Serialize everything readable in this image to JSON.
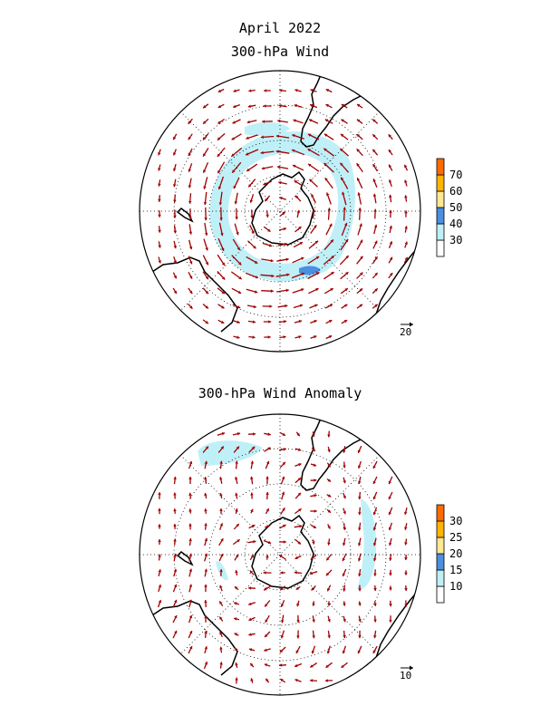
{
  "figure": {
    "title_month": "April 2022",
    "panels": [
      {
        "id": "top",
        "title": "300-hPa Wind",
        "reference_vector_label": "20",
        "colorbar": {
          "labels": [
            "30",
            "40",
            "50",
            "60",
            "70"
          ],
          "colors": [
            "#ffffff",
            "#bff0f8",
            "#4a8fe0",
            "#ffe890",
            "#ffb400",
            "#ff6a00"
          ]
        }
      },
      {
        "id": "bottom",
        "title": "300-hPa Wind Anomaly",
        "reference_vector_label": "10",
        "colorbar": {
          "labels": [
            "10",
            "15",
            "20",
            "25",
            "30"
          ],
          "colors": [
            "#ffffff",
            "#bff0f8",
            "#4a8fe0",
            "#ffe890",
            "#ffb400",
            "#ff6a00"
          ]
        }
      }
    ],
    "arrow_color": "#a00000",
    "shade_color": "#bff0f8",
    "shade_dark_color": "#4a8fe0"
  }
}
